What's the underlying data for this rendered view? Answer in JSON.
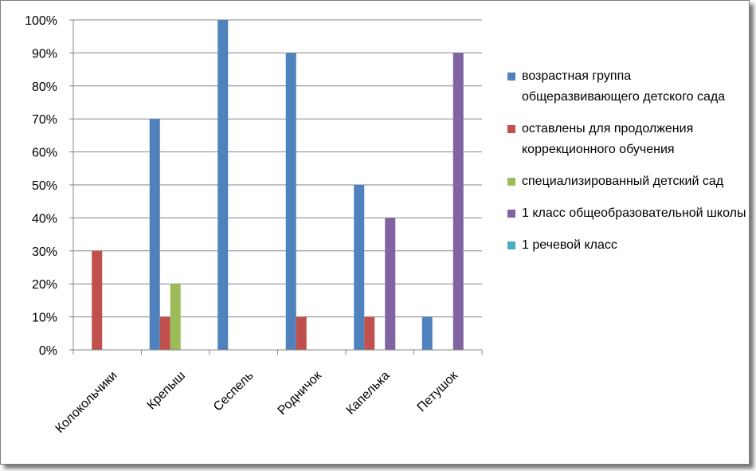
{
  "chart_data": {
    "type": "bar",
    "categories": [
      "Колокольчики",
      "Крепыш",
      "Сеспель",
      "Родничок",
      "Капелька",
      "Петушок"
    ],
    "series": [
      {
        "name": "возрастная группа общеразвивающего детского сада",
        "color": "#4f81bd",
        "values": [
          0,
          70,
          100,
          90,
          50,
          10
        ]
      },
      {
        "name": "оставлены для продолжения коррекционного обучения",
        "color": "#c0504d",
        "values": [
          30,
          10,
          0,
          10,
          10,
          0
        ]
      },
      {
        "name": "специализированный детский сад",
        "color": "#9bbb59",
        "values": [
          0,
          20,
          0,
          0,
          0,
          0
        ]
      },
      {
        "name": "1 класс общеобразовательной школы",
        "color": "#8064a2",
        "values": [
          0,
          0,
          0,
          0,
          40,
          90
        ]
      },
      {
        "name": "1 речевой класс",
        "color": "#4bacc6",
        "values": [
          0,
          0,
          0,
          0,
          0,
          0
        ]
      }
    ],
    "ylim": [
      0,
      100
    ],
    "yticks": [
      "0%",
      "10%",
      "20%",
      "30%",
      "40%",
      "50%",
      "60%",
      "70%",
      "80%",
      "90%",
      "100%"
    ],
    "grid": true,
    "legend_position": "right"
  }
}
